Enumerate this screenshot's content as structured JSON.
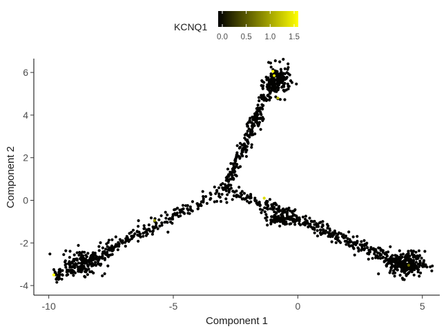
{
  "chart_data": {
    "type": "scatter",
    "xlabel": "Component 1",
    "ylabel": "Component 2",
    "xlim": [
      -10.6,
      5.7
    ],
    "ylim": [
      -4.45,
      6.65
    ],
    "xticks": [
      -10,
      -5,
      0,
      5
    ],
    "yticks": [
      -4,
      -2,
      0,
      2,
      4,
      6
    ],
    "x_tick_labels": [
      "-10",
      "-5",
      "0",
      "5"
    ],
    "y_tick_labels": [
      "-4",
      "-2",
      "0",
      "2",
      "4",
      "6"
    ],
    "grid": false,
    "color_scale": {
      "title": "KCNQ1",
      "low_color": "#000000",
      "high_color": "#ffff00",
      "range": [
        0,
        1.5
      ],
      "ticks": [
        0,
        0.5,
        1,
        1.5
      ],
      "tick_labels": [
        "0.0",
        "0.5",
        "1.0",
        "1.5"
      ],
      "placement": "top"
    },
    "branches": [
      {
        "name": "lower-left",
        "from": [
          -2.9,
          0.55
        ],
        "to": [
          -9.7,
          -3.6
        ],
        "count": 300,
        "spread": 0.16
      },
      {
        "name": "upper",
        "from": [
          -2.9,
          0.55
        ],
        "to": [
          -1.0,
          5.7
        ],
        "count": 260,
        "spread": 0.12
      },
      {
        "name": "right",
        "from": [
          -2.9,
          0.55
        ],
        "to": [
          4.6,
          -3.2
        ],
        "count": 420,
        "spread": 0.15
      }
    ],
    "clusters": [
      {
        "name": "upper-tip",
        "center": [
          -0.8,
          5.6
        ],
        "count": 150,
        "spread": [
          0.25,
          0.35
        ]
      },
      {
        "name": "lower-left-tip",
        "center": [
          -8.6,
          -2.9
        ],
        "count": 120,
        "spread": [
          0.45,
          0.3
        ]
      },
      {
        "name": "right-tip",
        "center": [
          4.4,
          -3.0
        ],
        "count": 200,
        "spread": [
          0.35,
          0.3
        ]
      },
      {
        "name": "middle-blob",
        "center": [
          -0.8,
          -0.9
        ],
        "count": 70,
        "spread": [
          0.25,
          0.12
        ]
      }
    ],
    "highlighted_points": [
      {
        "x": -1.0,
        "y": 6.05,
        "value": 1.5
      },
      {
        "x": -0.95,
        "y": 5.85,
        "value": 1.3
      },
      {
        "x": -0.8,
        "y": 4.8,
        "value": 1.1
      },
      {
        "x": -1.35,
        "y": 0.1,
        "value": 1.3
      },
      {
        "x": -5.75,
        "y": -0.95,
        "value": 0.9
      },
      {
        "x": -9.8,
        "y": -3.5,
        "value": 1.5
      },
      {
        "x": 4.45,
        "y": -3.05,
        "value": 0.6
      }
    ],
    "background_value": 0.02
  }
}
